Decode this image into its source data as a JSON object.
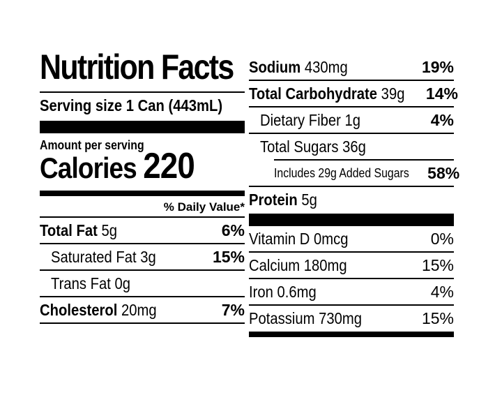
{
  "label": {
    "title": "Nutrition Facts",
    "serving_label": "Serving size",
    "serving_value": "1 Can (443mL)",
    "amount_per_serving": "Amount per serving",
    "calories_label": "Calories",
    "calories_value": "220",
    "daily_value_header": "% Daily Value*"
  },
  "left_nutrients": [
    {
      "name": "Total Fat",
      "amount": "5g",
      "dv": "6%"
    },
    {
      "name": "Saturated Fat 3g",
      "amount": "",
      "dv": "15%"
    },
    {
      "name": "Trans Fat 0g",
      "amount": "",
      "dv": ""
    },
    {
      "name": "Cholesterol",
      "amount": "20mg",
      "dv": "7%"
    }
  ],
  "right_nutrients": [
    {
      "name": "Sodium",
      "amount": "430mg",
      "dv": "19%"
    },
    {
      "name": "Total Carbohydrate",
      "amount": "39g",
      "dv": "14%"
    },
    {
      "name": "Dietary Fiber 1g",
      "amount": "",
      "dv": "4%"
    },
    {
      "name": "Total Sugars 36g",
      "amount": "",
      "dv": ""
    },
    {
      "name": "Includes 29g Added Sugars",
      "amount": "",
      "dv": "58%"
    },
    {
      "name": "Protein",
      "amount": "5g",
      "dv": ""
    }
  ],
  "vitamins": [
    {
      "name": "Vitamin D 0mcg",
      "dv": "0%"
    },
    {
      "name": "Calcium 180mg",
      "dv": "15%"
    },
    {
      "name": "Iron 0.6mg",
      "dv": "4%"
    },
    {
      "name": "Potassium 730mg",
      "dv": "15%"
    }
  ]
}
